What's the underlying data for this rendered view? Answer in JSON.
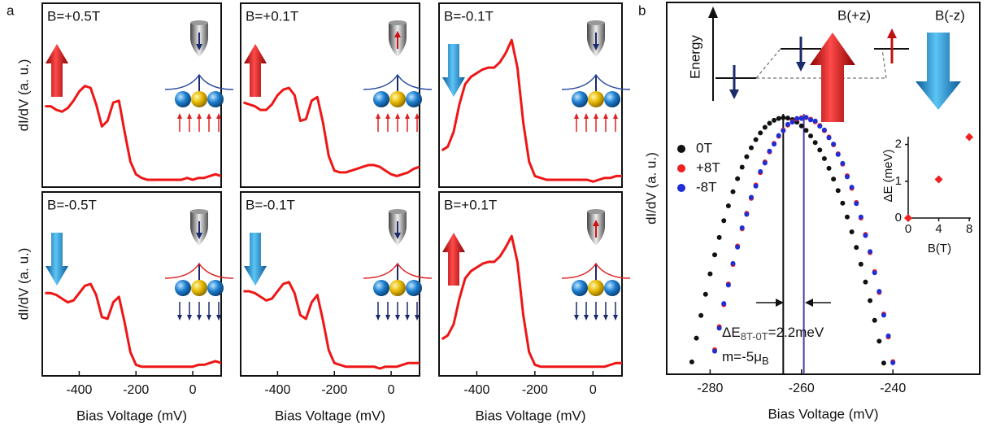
{
  "chart_data": [
    {
      "type": "line",
      "panel": "a",
      "title": "B=+0.5T",
      "ylabel": "dI/dV (a. u.)",
      "color": "#ee1616",
      "xlim": [
        -530,
        100
      ],
      "ylim": [
        0,
        1
      ],
      "x": [
        -520,
        -500,
        -480,
        -460,
        -440,
        -420,
        -400,
        -380,
        -360,
        -340,
        -320,
        -300,
        -280,
        -260,
        -240,
        -220,
        -200,
        -180,
        -160,
        -140,
        -120,
        -100,
        -80,
        -60,
        -40,
        -20,
        0,
        20,
        40,
        60,
        80,
        100
      ],
      "values": [
        0.44,
        0.44,
        0.42,
        0.41,
        0.43,
        0.47,
        0.52,
        0.55,
        0.54,
        0.45,
        0.33,
        0.36,
        0.46,
        0.47,
        0.3,
        0.14,
        0.07,
        0.05,
        0.04,
        0.04,
        0.04,
        0.04,
        0.04,
        0.04,
        0.04,
        0.05,
        0.04,
        0.05,
        0.05,
        0.06,
        0.07,
        0.06
      ]
    },
    {
      "type": "line",
      "title": "B=+0.1T",
      "color": "#ee1616",
      "xlim": [
        -530,
        100
      ],
      "ylim": [
        0,
        1
      ],
      "x": [
        -520,
        -500,
        -480,
        -460,
        -440,
        -420,
        -400,
        -380,
        -360,
        -340,
        -320,
        -300,
        -280,
        -260,
        -240,
        -220,
        -200,
        -180,
        -160,
        -140,
        -120,
        -100,
        -80,
        -60,
        -40,
        -20,
        0,
        20,
        40,
        60,
        80,
        100
      ],
      "values": [
        0.46,
        0.45,
        0.44,
        0.42,
        0.42,
        0.45,
        0.5,
        0.53,
        0.54,
        0.5,
        0.36,
        0.37,
        0.47,
        0.49,
        0.35,
        0.17,
        0.09,
        0.08,
        0.08,
        0.09,
        0.1,
        0.11,
        0.12,
        0.12,
        0.11,
        0.09,
        0.07,
        0.06,
        0.07,
        0.08,
        0.1,
        0.11
      ]
    },
    {
      "type": "line",
      "title": "B=-0.1T",
      "color": "#ee1616",
      "xlim": [
        -530,
        100
      ],
      "ylim": [
        0,
        1
      ],
      "x": [
        -520,
        -500,
        -480,
        -460,
        -440,
        -420,
        -400,
        -380,
        -360,
        -340,
        -320,
        -300,
        -280,
        -260,
        -240,
        -220,
        -200,
        -180,
        -160,
        -140,
        -120,
        -100,
        -80,
        -60,
        -40,
        -20,
        0,
        20,
        40,
        60,
        80,
        100
      ],
      "values": [
        0.2,
        0.22,
        0.3,
        0.45,
        0.56,
        0.6,
        0.62,
        0.64,
        0.65,
        0.65,
        0.68,
        0.73,
        0.8,
        0.65,
        0.35,
        0.14,
        0.06,
        0.05,
        0.04,
        0.04,
        0.04,
        0.04,
        0.04,
        0.04,
        0.04,
        0.04,
        0.03,
        0.04,
        0.05,
        0.05,
        0.06,
        0.06
      ]
    },
    {
      "type": "line",
      "title": "B=-0.5T",
      "ylabel": "dI/dV (a. u.)",
      "xlabel": "Bias Voltage (mV)",
      "color": "#ee1616",
      "xlim": [
        -530,
        100
      ],
      "ylim": [
        0,
        1
      ],
      "xticks": [
        -400,
        -200,
        0
      ],
      "x": [
        -520,
        -500,
        -480,
        -460,
        -440,
        -420,
        -400,
        -380,
        -360,
        -340,
        -320,
        -300,
        -280,
        -260,
        -240,
        -220,
        -200,
        -180,
        -160,
        -140,
        -120,
        -100,
        -80,
        -60,
        -40,
        -20,
        0,
        20,
        40,
        60,
        80,
        100
      ],
      "values": [
        0.45,
        0.45,
        0.44,
        0.42,
        0.4,
        0.41,
        0.45,
        0.49,
        0.5,
        0.44,
        0.32,
        0.31,
        0.4,
        0.43,
        0.29,
        0.13,
        0.06,
        0.05,
        0.05,
        0.05,
        0.05,
        0.05,
        0.05,
        0.05,
        0.05,
        0.05,
        0.05,
        0.06,
        0.06,
        0.07,
        0.08,
        0.07
      ]
    },
    {
      "type": "line",
      "title": "B=-0.1T",
      "xlabel": "Bias Voltage (mV)",
      "color": "#ee1616",
      "xlim": [
        -530,
        100
      ],
      "ylim": [
        0,
        1
      ],
      "xticks": [
        -400,
        -200,
        0
      ],
      "x": [
        -520,
        -500,
        -480,
        -460,
        -440,
        -420,
        -400,
        -380,
        -360,
        -340,
        -320,
        -300,
        -280,
        -260,
        -240,
        -220,
        -200,
        -180,
        -160,
        -140,
        -120,
        -100,
        -80,
        -60,
        -40,
        -20,
        0,
        20,
        40,
        60,
        80,
        100
      ],
      "values": [
        0.46,
        0.46,
        0.45,
        0.43,
        0.41,
        0.42,
        0.46,
        0.5,
        0.51,
        0.45,
        0.33,
        0.31,
        0.4,
        0.44,
        0.3,
        0.14,
        0.07,
        0.06,
        0.05,
        0.05,
        0.05,
        0.05,
        0.05,
        0.05,
        0.04,
        0.05,
        0.05,
        0.05,
        0.06,
        0.07,
        0.07,
        0.07
      ]
    },
    {
      "type": "line",
      "title": "B=+0.1T",
      "xlabel": "Bias Voltage (mV)",
      "color": "#ee1616",
      "xlim": [
        -530,
        100
      ],
      "ylim": [
        0,
        1
      ],
      "xticks": [
        -400,
        -200,
        0
      ],
      "x": [
        -520,
        -500,
        -480,
        -460,
        -440,
        -420,
        -400,
        -380,
        -360,
        -340,
        -320,
        -300,
        -280,
        -260,
        -240,
        -220,
        -200,
        -180,
        -160,
        -140,
        -120,
        -100,
        -80,
        -60,
        -40,
        -20,
        0,
        20,
        40,
        60,
        80,
        100
      ],
      "values": [
        0.2,
        0.22,
        0.28,
        0.42,
        0.53,
        0.57,
        0.59,
        0.61,
        0.62,
        0.62,
        0.65,
        0.7,
        0.76,
        0.62,
        0.33,
        0.13,
        0.06,
        0.05,
        0.05,
        0.05,
        0.05,
        0.05,
        0.05,
        0.05,
        0.05,
        0.05,
        0.05,
        0.05,
        0.05,
        0.06,
        0.07,
        0.07
      ]
    },
    {
      "type": "scatter",
      "panel": "b",
      "xlabel": "Bias Voltage (mV)",
      "ylabel": "dI/dV (a. u.)",
      "xlim": [
        -289.5,
        -221
      ],
      "ylim": [
        0,
        1
      ],
      "xticks": [
        -280,
        -260,
        -240
      ],
      "diagram": {
        "axis": "Energy",
        "plus": "B(+z)",
        "minus": "B(-z)"
      },
      "series": [
        {
          "name": "0T",
          "color": "#111111",
          "x": [
            -284,
            -283,
            -282,
            -281,
            -280,
            -279,
            -278,
            -277,
            -276,
            -275,
            -274,
            -273,
            -272,
            -271,
            -270,
            -269,
            -268,
            -267,
            -266,
            -265,
            -264,
            -263,
            -262,
            -261,
            -260,
            -259,
            -258,
            -257,
            -256,
            -255,
            -254,
            -253,
            -252,
            -251,
            -250,
            -249,
            -248,
            -247,
            -246,
            -245,
            -244,
            -243,
            -242
          ],
          "values": [
            0.033,
            0.097,
            0.158,
            0.215,
            0.27,
            0.321,
            0.368,
            0.413,
            0.453,
            0.491,
            0.526,
            0.557,
            0.585,
            0.609,
            0.631,
            0.649,
            0.664,
            0.675,
            0.683,
            0.688,
            0.69,
            0.689,
            0.685,
            0.678,
            0.668,
            0.656,
            0.641,
            0.623,
            0.603,
            0.58,
            0.554,
            0.525,
            0.494,
            0.46,
            0.423,
            0.383,
            0.341,
            0.296,
            0.248,
            0.198,
            0.145,
            0.089,
            0.03
          ]
        },
        {
          "name": "+8T",
          "color": "#ee2020",
          "x": [
            -279,
            -278,
            -277,
            -276,
            -275,
            -274,
            -273,
            -272,
            -271,
            -270,
            -269,
            -268,
            -267,
            -266,
            -265,
            -264,
            -263,
            -262,
            -261,
            -260,
            -259,
            -258,
            -257,
            -256,
            -255,
            -254,
            -253,
            -252,
            -251,
            -250,
            -249,
            -248,
            -247,
            -246,
            -245,
            -244,
            -243,
            -242,
            -241,
            -240
          ],
          "values": [
            0.066,
            0.128,
            0.187,
            0.243,
            0.295,
            0.345,
            0.391,
            0.433,
            0.473,
            0.509,
            0.542,
            0.571,
            0.598,
            0.621,
            0.64,
            0.657,
            0.67,
            0.68,
            0.686,
            0.69,
            0.69,
            0.686,
            0.679,
            0.669,
            0.655,
            0.638,
            0.617,
            0.593,
            0.565,
            0.534,
            0.5,
            0.462,
            0.42,
            0.376,
            0.327,
            0.276,
            0.22,
            0.162,
            0.1,
            0.034
          ]
        },
        {
          "name": "-8T",
          "color": "#1f2ed6",
          "x": [
            -279,
            -278,
            -277,
            -276,
            -275,
            -274,
            -273,
            -272,
            -271,
            -270,
            -269,
            -268,
            -267,
            -266,
            -265,
            -264,
            -263,
            -262,
            -261,
            -260,
            -259,
            -258,
            -257,
            -256,
            -255,
            -254,
            -253,
            -252,
            -251,
            -250,
            -249,
            -248,
            -247,
            -246,
            -245,
            -244,
            -243,
            -242,
            -241,
            -240
          ],
          "values": [
            0.062,
            0.124,
            0.19,
            0.24,
            0.298,
            0.342,
            0.394,
            0.43,
            0.476,
            0.506,
            0.545,
            0.568,
            0.6,
            0.619,
            0.642,
            0.655,
            0.672,
            0.678,
            0.688,
            0.688,
            0.691,
            0.684,
            0.681,
            0.667,
            0.657,
            0.636,
            0.619,
            0.591,
            0.567,
            0.531,
            0.503,
            0.459,
            0.423,
            0.373,
            0.33,
            0.273,
            0.223,
            0.159,
            0.103,
            0.031
          ]
        }
      ],
      "vlines": [
        {
          "x": -264,
          "color": "#111111"
        },
        {
          "x": -259.5,
          "color": "#4b3fa0"
        }
      ],
      "annotations": [
        {
          "parts": [
            "ΔE",
            "8T-0T",
            "=2.2meV"
          ]
        },
        {
          "parts": [
            "m=-5μ",
            "B"
          ]
        }
      ]
    },
    {
      "type": "scatter",
      "xlabel": "B(T)",
      "ylabel": "ΔE (meV)",
      "color": "#ee2020",
      "marker": "diamond",
      "xlim": [
        0,
        8.2
      ],
      "ylim": [
        0,
        2.3
      ],
      "xticks": [
        0,
        4,
        8
      ],
      "yticks": [
        0,
        1,
        2
      ],
      "x": [
        0,
        4,
        8
      ],
      "values": [
        0,
        1.05,
        2.2
      ]
    }
  ]
}
